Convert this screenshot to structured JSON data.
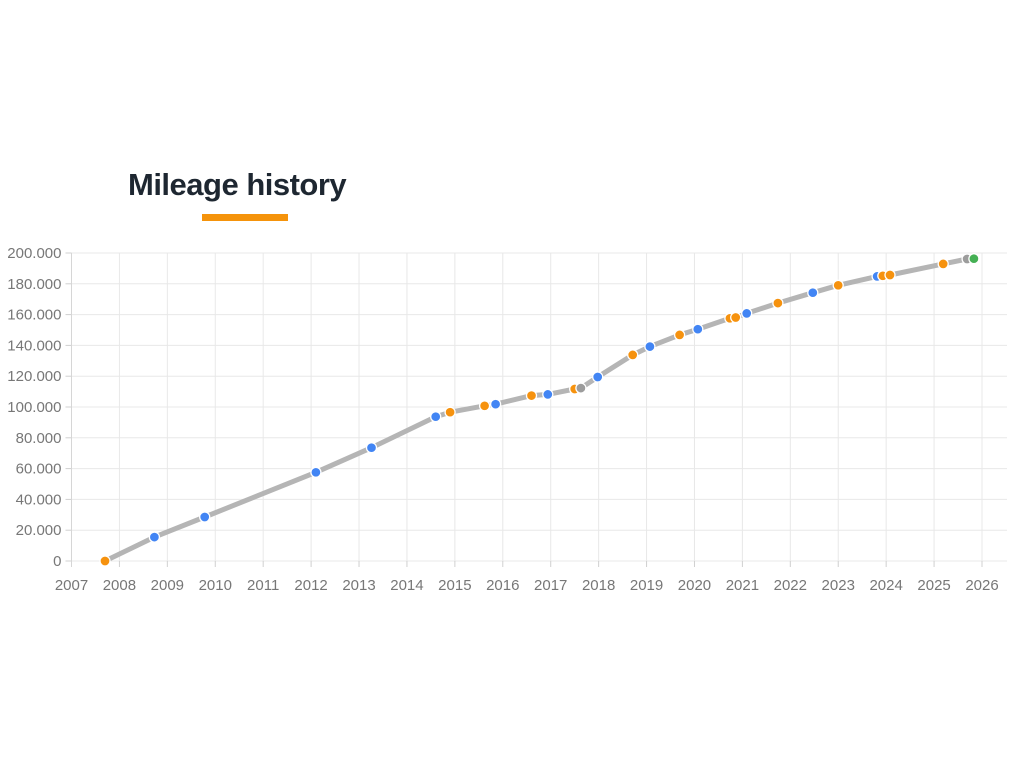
{
  "header": {
    "title": "Mileage history",
    "underline_color": "#f5930b",
    "title_color": "#1e2731"
  },
  "chart_data": {
    "type": "line",
    "title": "Mileage history",
    "xlabel": "",
    "ylabel": "",
    "legend": "none",
    "grid": true,
    "xlim": [
      2007,
      2026.5
    ],
    "ylim": [
      0,
      200000
    ],
    "x_ticks": [
      2007,
      2008,
      2009,
      2010,
      2011,
      2012,
      2013,
      2014,
      2015,
      2016,
      2017,
      2018,
      2019,
      2020,
      2021,
      2022,
      2023,
      2024,
      2025,
      2026
    ],
    "y_ticks": [
      0,
      20000,
      40000,
      60000,
      80000,
      100000,
      120000,
      140000,
      160000,
      180000,
      200000
    ],
    "y_tick_labels": [
      "0",
      "20.000",
      "40.000",
      "60.000",
      "80.000",
      "100.000",
      "120.000",
      "140.000",
      "160.000",
      "180.000",
      "200.000"
    ],
    "colors": {
      "grid": "#e8e8e8",
      "tick": "#d0d0d0",
      "axis": "#d6d6d6",
      "label": "#777777",
      "line": "#b5b5b5"
    },
    "point_colors": {
      "orange": "#f6920e",
      "blue": "#4285f4",
      "gray": "#9c9c9c",
      "green": "#45b054"
    },
    "points": [
      {
        "x": 2007.7,
        "y": 0,
        "color": "orange"
      },
      {
        "x": 2008.73,
        "y": 15500,
        "color": "blue"
      },
      {
        "x": 2009.78,
        "y": 28600,
        "color": "blue"
      },
      {
        "x": 2012.1,
        "y": 57600,
        "color": "blue"
      },
      {
        "x": 2013.26,
        "y": 73600,
        "color": "blue"
      },
      {
        "x": 2014.6,
        "y": 93700,
        "color": "blue"
      },
      {
        "x": 2014.9,
        "y": 96600,
        "color": "orange"
      },
      {
        "x": 2015.62,
        "y": 100800,
        "color": "orange"
      },
      {
        "x": 2015.85,
        "y": 101800,
        "color": "blue"
      },
      {
        "x": 2016.6,
        "y": 107400,
        "color": "orange"
      },
      {
        "x": 2016.94,
        "y": 108200,
        "color": "blue"
      },
      {
        "x": 2017.5,
        "y": 111700,
        "color": "orange"
      },
      {
        "x": 2017.63,
        "y": 112300,
        "color": "gray"
      },
      {
        "x": 2017.98,
        "y": 119500,
        "color": "blue"
      },
      {
        "x": 2018.71,
        "y": 133800,
        "color": "orange"
      },
      {
        "x": 2019.07,
        "y": 139200,
        "color": "blue"
      },
      {
        "x": 2019.69,
        "y": 146800,
        "color": "orange"
      },
      {
        "x": 2020.07,
        "y": 150500,
        "color": "blue"
      },
      {
        "x": 2020.74,
        "y": 157600,
        "color": "orange"
      },
      {
        "x": 2020.86,
        "y": 158100,
        "color": "orange"
      },
      {
        "x": 2021.09,
        "y": 160800,
        "color": "blue"
      },
      {
        "x": 2021.74,
        "y": 167500,
        "color": "orange"
      },
      {
        "x": 2022.47,
        "y": 174200,
        "color": "blue"
      },
      {
        "x": 2023.0,
        "y": 179000,
        "color": "orange"
      },
      {
        "x": 2023.81,
        "y": 184800,
        "color": "blue"
      },
      {
        "x": 2023.93,
        "y": 185200,
        "color": "orange"
      },
      {
        "x": 2024.08,
        "y": 185700,
        "color": "orange"
      },
      {
        "x": 2025.19,
        "y": 192900,
        "color": "orange"
      },
      {
        "x": 2025.69,
        "y": 196100,
        "color": "gray"
      },
      {
        "x": 2025.83,
        "y": 196300,
        "color": "green"
      }
    ]
  }
}
